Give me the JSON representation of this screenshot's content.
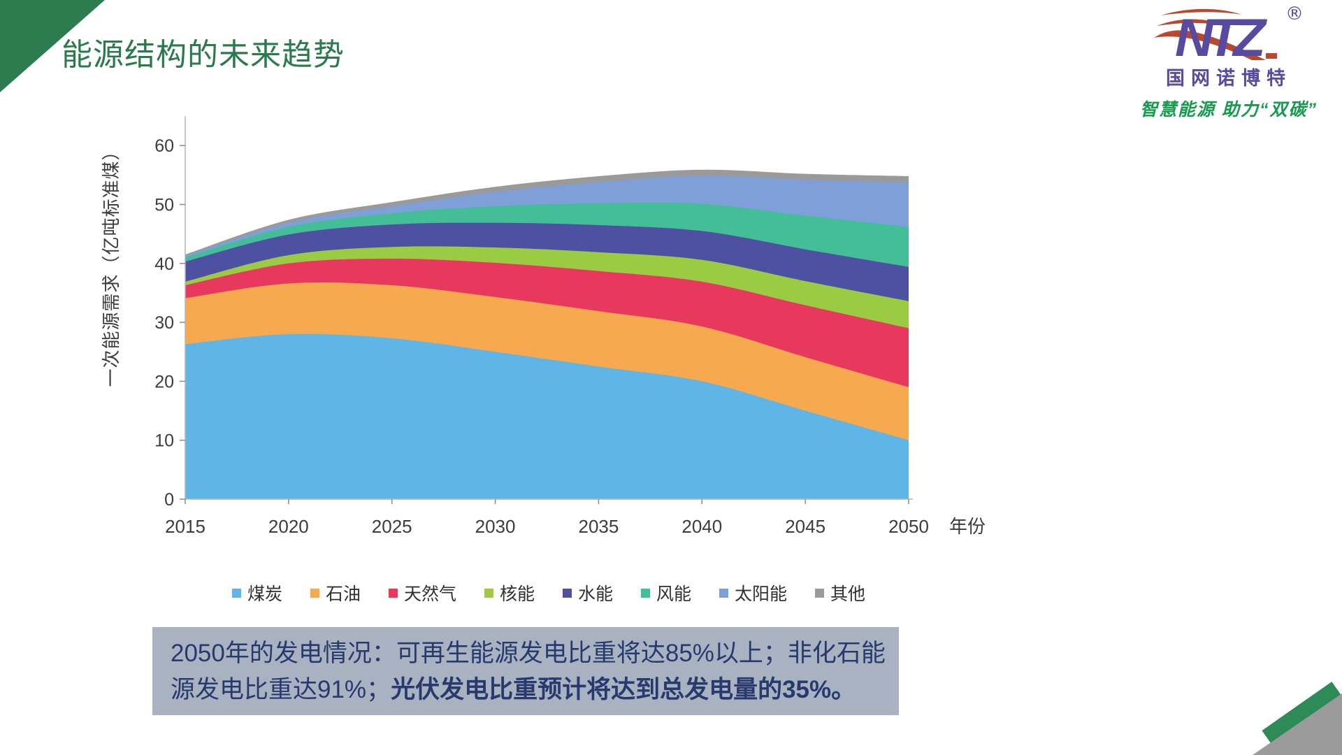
{
  "slide": {
    "title": "能源结构的未来趋势",
    "logo": {
      "brand_mark": "NTZ",
      "registered": "®",
      "company": "国网诺博特",
      "slogan": "智慧能源 助力“双碳”"
    },
    "footer_box": {
      "line1": "2050年的发电情况：可再生能源发电比重将达85%以上；非化石能",
      "line2_normal": "源发电比重达91%；",
      "line2_bold": "光伏发电比重预计将达到总发电量的35%。"
    }
  },
  "chart_data": {
    "type": "area",
    "stacked": true,
    "x": [
      2015,
      2020,
      2025,
      2030,
      2035,
      2040,
      2045,
      2050
    ],
    "xlabel": "年份",
    "ylabel": "一次能源需求（亿吨标准煤）",
    "ylim": [
      0,
      60
    ],
    "y_ticks": [
      0,
      10,
      20,
      30,
      40,
      50,
      60
    ],
    "grid": false,
    "legend_position": "bottom",
    "series": [
      {
        "name": "煤炭",
        "color": "#5FB5E5",
        "values": [
          26.3,
          28.0,
          27.3,
          25.0,
          22.5,
          20.0,
          15.0,
          10.0
        ]
      },
      {
        "name": "石油",
        "color": "#F6A94E",
        "values": [
          7.8,
          8.6,
          9.0,
          9.3,
          9.4,
          9.3,
          9.1,
          9.0
        ]
      },
      {
        "name": "天然气",
        "color": "#E7395E",
        "values": [
          2.2,
          3.4,
          4.5,
          5.8,
          6.8,
          7.6,
          8.8,
          10.0
        ]
      },
      {
        "name": "核能",
        "color": "#9BCB43",
        "values": [
          0.6,
          1.4,
          2.0,
          2.6,
          3.2,
          3.7,
          4.1,
          4.6
        ]
      },
      {
        "name": "水能",
        "color": "#4E51A1",
        "values": [
          3.4,
          3.5,
          3.8,
          4.2,
          4.6,
          4.9,
          5.4,
          5.8
        ]
      },
      {
        "name": "风能",
        "color": "#43BE97",
        "values": [
          0.7,
          1.3,
          1.9,
          2.8,
          3.7,
          4.6,
          5.7,
          6.8
        ]
      },
      {
        "name": "太阳能",
        "color": "#7E9FD8",
        "values": [
          0.3,
          0.7,
          1.2,
          2.4,
          3.6,
          4.8,
          6.1,
          7.5
        ]
      },
      {
        "name": "其他",
        "color": "#9A9A9A",
        "values": [
          0.2,
          0.5,
          0.7,
          0.9,
          1.0,
          1.0,
          1.0,
          1.1
        ]
      }
    ]
  }
}
